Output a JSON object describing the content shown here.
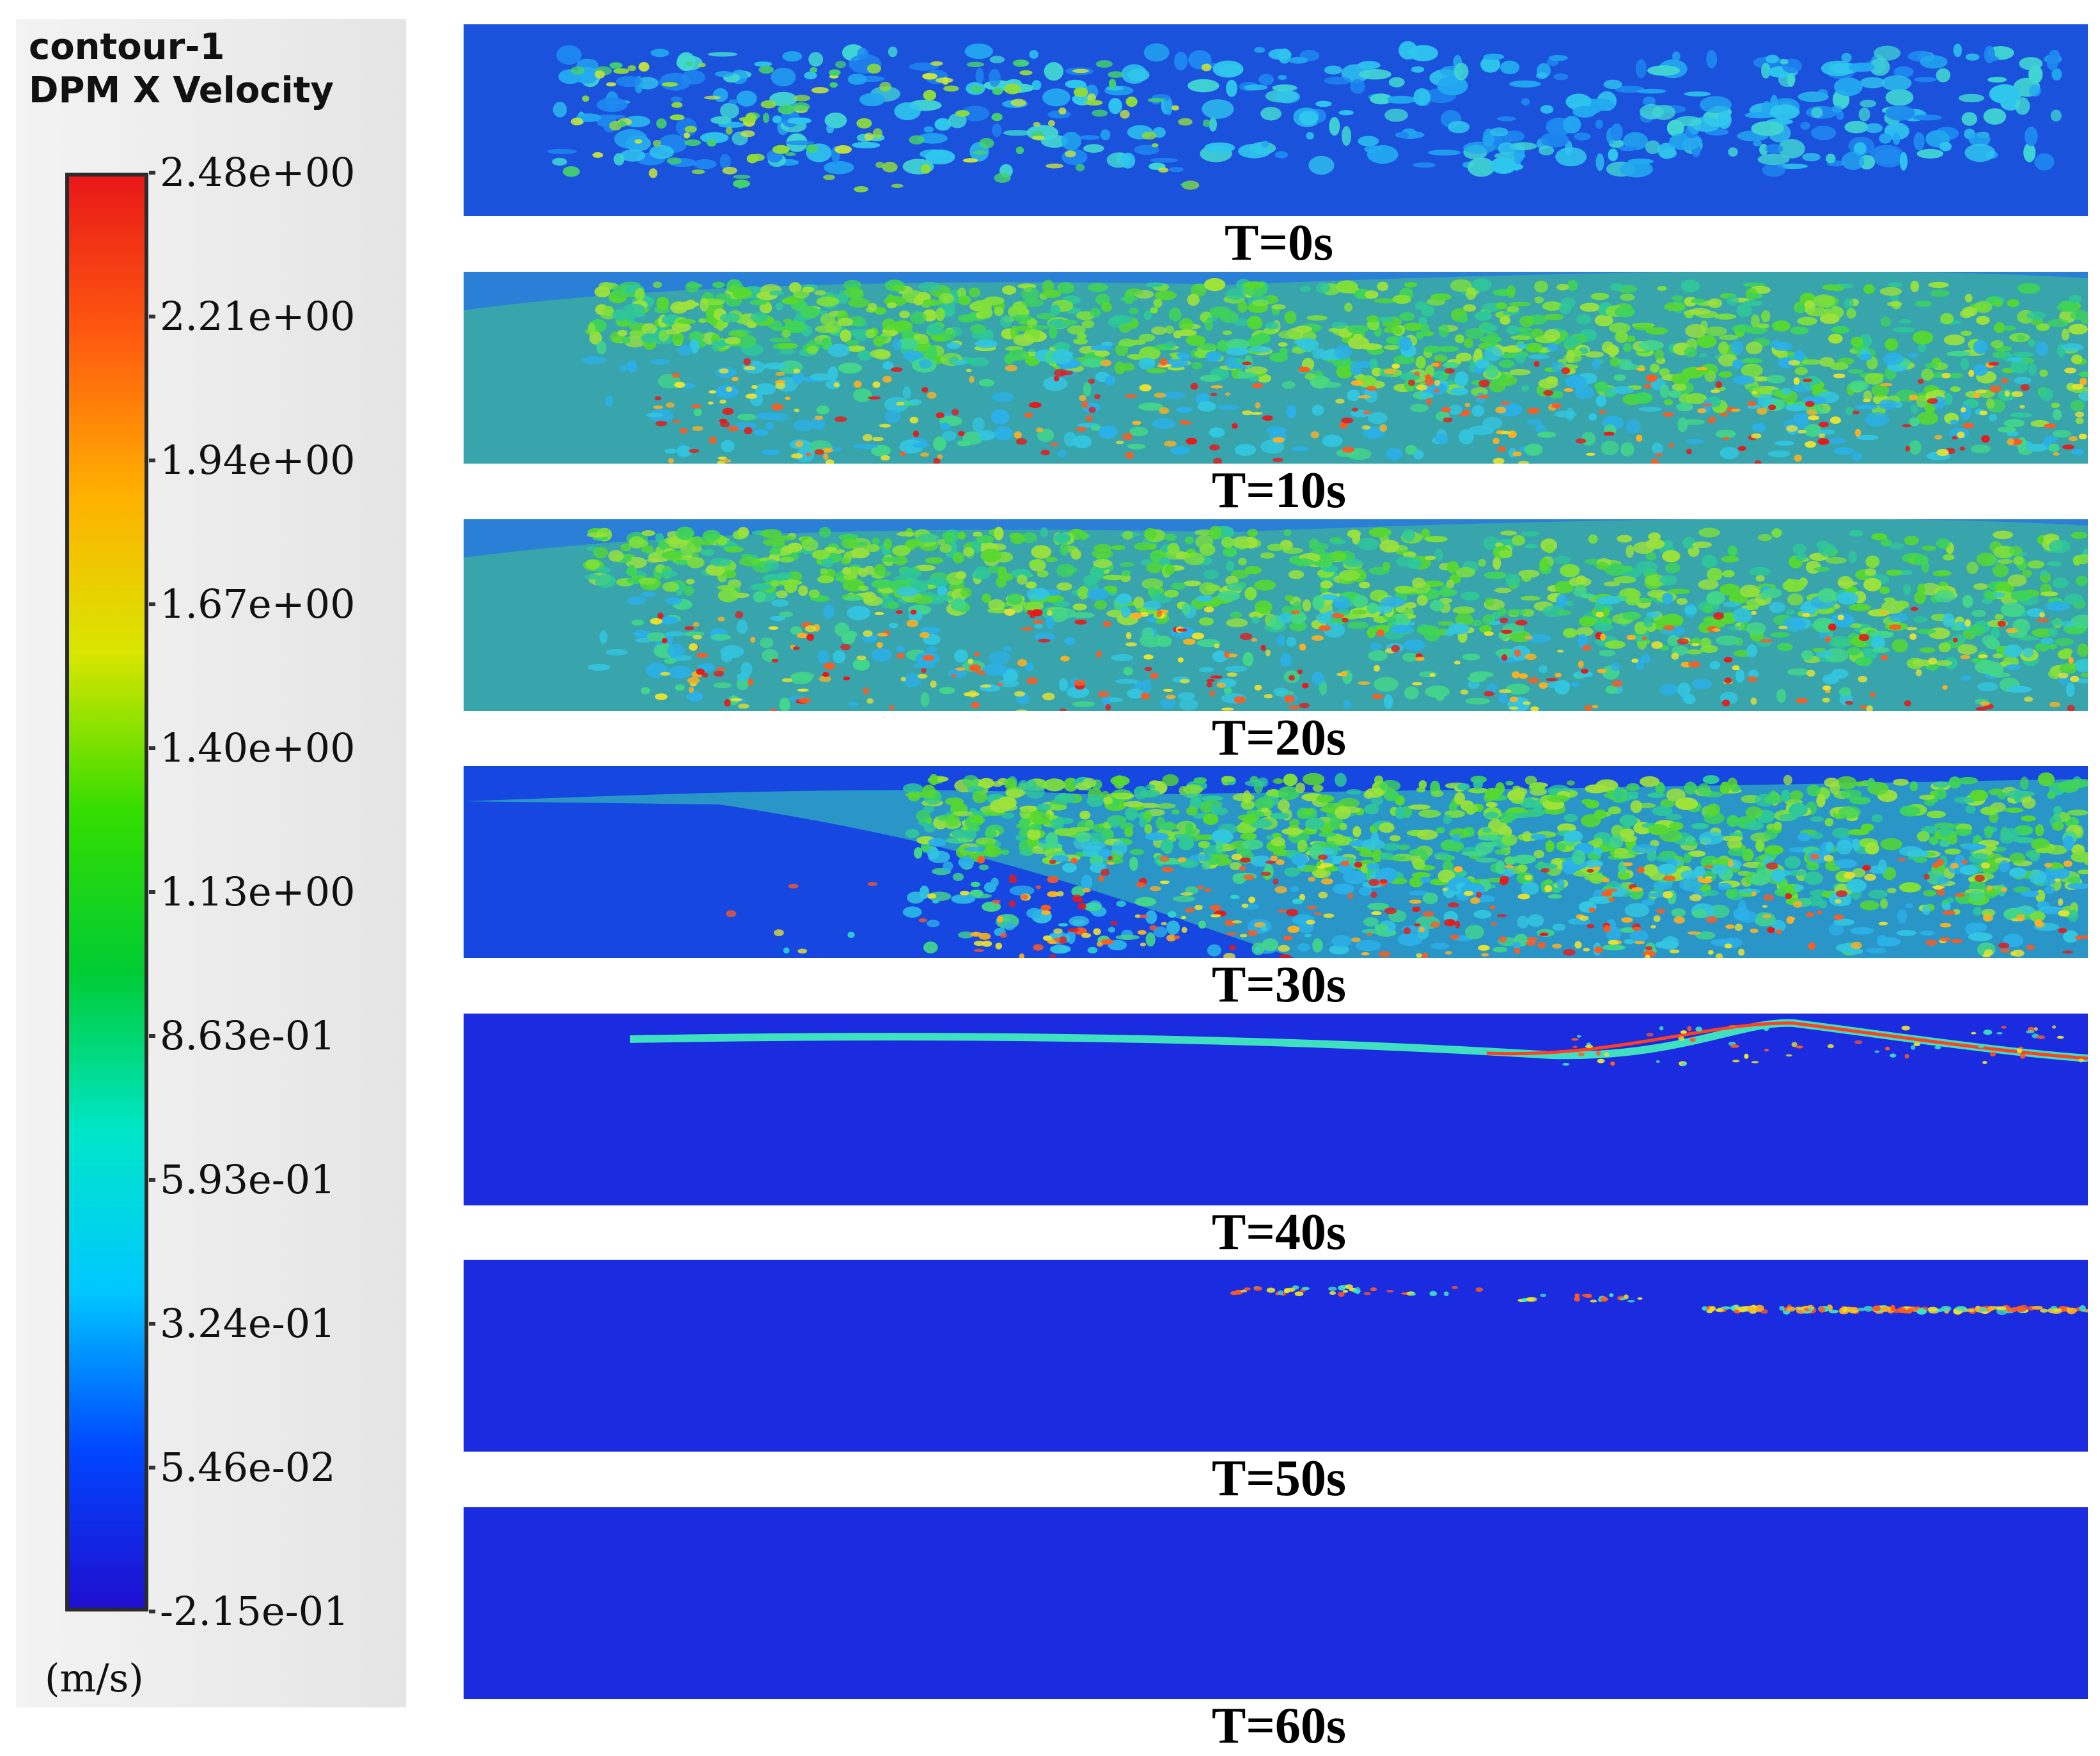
{
  "legend": {
    "title_line1": "contour-1",
    "title_line2": "DPM X Velocity",
    "unit": "(m/s)",
    "colormap": [
      "#1f0fcf",
      "#0047ff",
      "#00c8ff",
      "#00e6c8",
      "#00cc33",
      "#33dd00",
      "#d9e600",
      "#ffb000",
      "#ff5a10",
      "#e81818"
    ],
    "range": [
      -0.215,
      2.48
    ],
    "ticks": [
      "2.48e+00",
      "2.21e+00",
      "1.94e+00",
      "1.67e+00",
      "1.40e+00",
      "1.13e+00",
      "8.63e-01",
      "5.93e-01",
      "3.24e-01",
      "5.46e-02",
      "-2.15e-01"
    ]
  },
  "snapshots": [
    {
      "label": "T=0s",
      "pattern": "sparse-particles"
    },
    {
      "label": "T=10s",
      "pattern": "dense-bed"
    },
    {
      "label": "T=20s",
      "pattern": "dense-bed"
    },
    {
      "label": "T=30s",
      "pattern": "partial-bed"
    },
    {
      "label": "T=40s",
      "pattern": "top-streak"
    },
    {
      "label": "T=50s",
      "pattern": "scattered-streaks"
    },
    {
      "label": "T=60s",
      "pattern": "empty"
    }
  ]
}
